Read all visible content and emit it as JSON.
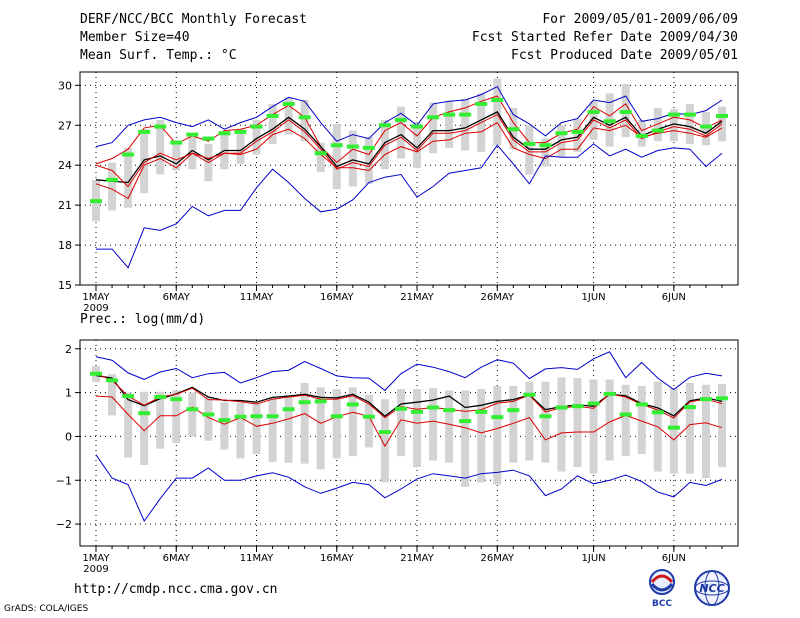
{
  "header": {
    "left_lines": [
      "DERF/NCC/BCC Monthly Forecast",
      "Member Size=40",
      "Mean Surf. Temp.: °C"
    ],
    "right_lines": [
      "For 2009/05/01-2009/06/09",
      "Fcst Started Refer Date 2009/04/30",
      "Fcst Produced Date 2009/05/01"
    ]
  },
  "footer": {
    "url": "http://cmdp.ncc.cma.gov.cn",
    "credit": "GrADS: COLA/IGES"
  },
  "logos": {
    "bcc": "BCC",
    "ncc": "NCC"
  },
  "colors": {
    "box": "#d3d3d3",
    "median": "#33ee33",
    "minmax": "#0000cc",
    "pct": "#dd0000",
    "mean": "#000000"
  },
  "chart_data": [
    {
      "type": "line",
      "title": "Mean Surf. Temp.: °C",
      "ylim": [
        15,
        31
      ],
      "yticks": [
        15,
        18,
        21,
        24,
        27,
        30
      ],
      "ytick_labels": [
        "15",
        "18",
        "21",
        "24",
        "27",
        "30"
      ],
      "xticks": [
        1,
        6,
        11,
        16,
        21,
        26,
        32,
        37
      ],
      "xtick_labels": [
        "1MAY",
        "6MAY",
        "11MAY",
        "16MAY",
        "21MAY",
        "26MAY",
        "1JUN",
        "6JUN"
      ],
      "year_label": "2009",
      "days": [
        1,
        40
      ],
      "series": [
        {
          "name": "max",
          "values": [
            25.4,
            25.7,
            27.0,
            27.4,
            27.6,
            27.2,
            26.9,
            27.4,
            26.7,
            27.2,
            27.6,
            28.4,
            29.1,
            28.8,
            27.2,
            25.8,
            26.3,
            26.0,
            27.2,
            27.9,
            27.0,
            28.6,
            28.8,
            28.9,
            29.3,
            29.9,
            27.8,
            27.1,
            26.2,
            27.2,
            27.5,
            28.9,
            28.7,
            29.2,
            27.3,
            27.5,
            27.9,
            27.8,
            28.1,
            28.9
          ]
        },
        {
          "name": "p90",
          "values": [
            24.1,
            24.5,
            25.2,
            26.8,
            27.0,
            25.6,
            26.2,
            25.8,
            26.6,
            26.7,
            27.0,
            27.8,
            28.5,
            27.6,
            25.4,
            24.2,
            25.2,
            24.8,
            26.6,
            27.2,
            26.2,
            27.6,
            28.0,
            28.3,
            28.8,
            29.2,
            27.2,
            25.7,
            25.7,
            26.4,
            26.7,
            28.4,
            27.7,
            28.6,
            26.6,
            27.1,
            27.6,
            27.4,
            26.8,
            27.4
          ]
        },
        {
          "name": "mean",
          "values": [
            22.9,
            22.8,
            22.7,
            24.4,
            24.7,
            24.1,
            25.1,
            24.4,
            25.1,
            25.1,
            26.0,
            26.7,
            27.6,
            26.7,
            25.4,
            23.9,
            24.4,
            24.1,
            25.7,
            26.3,
            25.3,
            26.6,
            26.6,
            26.8,
            27.4,
            28.0,
            26.1,
            25.2,
            25.2,
            25.9,
            26.1,
            27.6,
            27.0,
            27.6,
            26.2,
            26.7,
            27.1,
            26.9,
            26.4,
            27.3
          ]
        },
        {
          "name": "p50",
          "values": [
            22.6,
            22.2,
            21.5,
            24.0,
            24.5,
            23.8,
            24.9,
            24.2,
            24.9,
            24.9,
            25.8,
            26.5,
            27.4,
            26.5,
            25.2,
            23.7,
            24.2,
            23.9,
            25.5,
            26.1,
            25.1,
            26.4,
            26.4,
            26.6,
            27.2,
            27.8,
            25.9,
            25.0,
            25.0,
            25.7,
            25.9,
            27.4,
            26.8,
            27.4,
            26.0,
            26.5,
            26.9,
            26.7,
            26.2,
            27.1
          ]
        },
        {
          "name": "p10",
          "values": [
            24.0,
            23.6,
            22.4,
            24.2,
            24.9,
            24.4,
            24.9,
            24.5,
            24.9,
            24.8,
            25.2,
            26.3,
            26.7,
            26.0,
            24.8,
            23.8,
            23.8,
            23.6,
            24.8,
            25.4,
            25.0,
            25.8,
            25.9,
            26.4,
            26.5,
            27.2,
            25.3,
            24.8,
            24.5,
            25.2,
            25.2,
            26.8,
            26.6,
            27.0,
            26.1,
            26.4,
            26.6,
            26.4,
            26.1,
            26.8
          ]
        },
        {
          "name": "min",
          "values": [
            17.7,
            17.7,
            16.3,
            19.3,
            19.1,
            19.6,
            20.9,
            20.2,
            20.6,
            20.6,
            22.3,
            23.7,
            22.7,
            21.5,
            20.5,
            20.7,
            21.4,
            22.7,
            23.1,
            23.3,
            21.6,
            22.4,
            23.4,
            23.6,
            23.8,
            25.5,
            24.1,
            22.6,
            24.7,
            24.6,
            24.6,
            25.6,
            24.7,
            25.2,
            24.6,
            25.1,
            25.3,
            25.2,
            23.9,
            24.9
          ]
        }
      ],
      "box_low": [
        19.8,
        20.6,
        20.8,
        21.9,
        23.3,
        23.6,
        23.7,
        22.8,
        23.7,
        24.1,
        24.8,
        25.6,
        26.3,
        25.8,
        23.5,
        22.2,
        22.4,
        22.6,
        23.7,
        24.5,
        23.8,
        24.9,
        25.3,
        25.1,
        25.0,
        25.5,
        25.2,
        23.3,
        23.9,
        24.6,
        25.0,
        25.9,
        25.4,
        26.1,
        25.4,
        25.8,
        25.8,
        25.6,
        25.5,
        25.8
      ],
      "box_high": [
        22.9,
        24.2,
        25.3,
        26.7,
        27.4,
        25.8,
        26.2,
        25.6,
        26.5,
        26.7,
        27.4,
        28.6,
        29.1,
        28.9,
        25.7,
        27.1,
        26.6,
        26.1,
        27.4,
        28.4,
        27.2,
        28.7,
        28.8,
        29.0,
        29.4,
        30.5,
        28.3,
        27.0,
        26.0,
        27.0,
        27.5,
        28.8,
        29.4,
        30.1,
        27.4,
        28.3,
        28.2,
        28.6,
        28.0,
        28.4
      ],
      "medians": [
        21.3,
        22.9,
        24.8,
        26.5,
        26.9,
        25.7,
        26.3,
        26.0,
        26.4,
        26.5,
        26.9,
        27.7,
        28.6,
        27.6,
        24.9,
        25.5,
        25.4,
        25.3,
        27.0,
        27.4,
        26.9,
        27.6,
        27.8,
        27.8,
        28.6,
        28.9,
        26.7,
        25.6,
        25.5,
        26.4,
        26.5,
        28.0,
        27.3,
        28.0,
        26.2,
        26.6,
        27.8,
        27.8,
        26.9,
        27.7
      ]
    },
    {
      "type": "line",
      "title": "Prec.: log(mm/d)",
      "ylim": [
        -2.5,
        2.2
      ],
      "yticks": [
        -2,
        -1,
        0,
        1,
        2
      ],
      "ytick_labels": [
        "−2",
        "−1",
        "0",
        "1",
        "2"
      ],
      "xticks": [
        1,
        6,
        11,
        16,
        21,
        26,
        32,
        37
      ],
      "xtick_labels": [
        "1MAY",
        "6MAY",
        "11MAY",
        "16MAY",
        "21MAY",
        "26MAY",
        "1JUN",
        "6JUN"
      ],
      "year_label": "2009",
      "days": [
        1,
        40
      ],
      "series": [
        {
          "name": "max",
          "values": [
            1.82,
            1.74,
            1.45,
            1.3,
            1.47,
            1.55,
            1.34,
            1.43,
            1.46,
            1.22,
            1.34,
            1.48,
            1.51,
            1.71,
            1.55,
            1.38,
            1.34,
            1.33,
            1.05,
            1.43,
            1.65,
            1.58,
            1.48,
            1.34,
            1.58,
            1.75,
            1.67,
            1.32,
            1.54,
            1.57,
            1.53,
            1.77,
            1.93,
            1.34,
            1.69,
            1.33,
            1.07,
            1.35,
            1.44,
            1.38
          ]
        },
        {
          "name": "mean",
          "values": [
            1.39,
            1.33,
            0.84,
            0.7,
            0.86,
            0.97,
            1.12,
            0.9,
            0.82,
            0.82,
            0.78,
            0.89,
            0.92,
            0.96,
            0.89,
            0.88,
            0.96,
            0.78,
            0.46,
            0.74,
            0.78,
            0.83,
            0.92,
            0.66,
            0.71,
            0.8,
            0.84,
            0.95,
            0.61,
            0.68,
            0.72,
            0.69,
            0.96,
            0.93,
            0.75,
            0.65,
            0.47,
            0.81,
            0.88,
            0.8
          ]
        },
        {
          "name": "p50",
          "values": [
            1.43,
            1.28,
            0.92,
            0.71,
            0.9,
            0.96,
            1.1,
            0.84,
            0.83,
            0.79,
            0.74,
            0.85,
            0.9,
            0.94,
            0.85,
            0.85,
            0.93,
            0.74,
            0.43,
            0.68,
            0.62,
            0.66,
            0.62,
            0.57,
            0.61,
            0.76,
            0.8,
            0.94,
            0.56,
            0.65,
            0.69,
            0.64,
            0.97,
            0.9,
            0.73,
            0.6,
            0.42,
            0.79,
            0.85,
            0.75
          ]
        },
        {
          "name": "p10",
          "values": [
            0.92,
            0.9,
            0.5,
            0.13,
            0.47,
            0.47,
            0.67,
            0.43,
            0.28,
            0.43,
            0.23,
            0.3,
            0.4,
            0.52,
            0.3,
            0.45,
            0.55,
            0.46,
            -0.22,
            0.38,
            0.3,
            0.35,
            0.28,
            0.2,
            0.08,
            0.18,
            0.3,
            0.43,
            -0.08,
            0.08,
            0.1,
            0.1,
            0.33,
            0.48,
            0.35,
            0.22,
            -0.08,
            0.27,
            0.31,
            0.2
          ]
        },
        {
          "name": "min",
          "values": [
            -0.42,
            -0.95,
            -1.1,
            -1.93,
            -1.42,
            -0.95,
            -0.95,
            -0.72,
            -1.0,
            -1.0,
            -0.9,
            -0.83,
            -0.93,
            -1.15,
            -1.3,
            -1.18,
            -1.05,
            -1.1,
            -1.4,
            -1.2,
            -0.97,
            -0.85,
            -0.9,
            -0.95,
            -0.85,
            -0.82,
            -0.77,
            -0.9,
            -1.35,
            -1.2,
            -0.9,
            -1.08,
            -1.0,
            -0.88,
            -1.03,
            -1.27,
            -1.38,
            -1.05,
            -1.12,
            -0.98
          ]
        }
      ],
      "box_low": [
        1.24,
        0.48,
        -0.48,
        -0.65,
        -0.28,
        -0.15,
        0.0,
        -0.1,
        -0.3,
        -0.5,
        -0.4,
        -0.58,
        -0.6,
        -0.62,
        -0.75,
        -0.5,
        -0.45,
        -0.25,
        -1.05,
        -0.45,
        -0.7,
        -0.55,
        -0.6,
        -1.15,
        -1.05,
        -1.1,
        -0.6,
        -0.55,
        -0.6,
        -0.8,
        -0.7,
        -0.85,
        -0.55,
        -0.45,
        -0.4,
        -0.8,
        -0.85,
        -0.85,
        -0.95,
        -0.7
      ],
      "box_high": [
        1.6,
        1.42,
        1.0,
        1.02,
        1.02,
        1.05,
        1.0,
        0.9,
        0.78,
        0.77,
        0.75,
        0.88,
        0.95,
        1.22,
        1.12,
        1.08,
        1.12,
        0.95,
        0.85,
        1.08,
        1.08,
        1.1,
        1.05,
        1.05,
        1.08,
        1.15,
        1.15,
        1.25,
        1.25,
        1.35,
        1.33,
        1.3,
        1.3,
        1.18,
        1.15,
        1.25,
        1.1,
        1.22,
        1.18,
        1.2
      ],
      "medians": [
        1.43,
        1.28,
        0.92,
        0.53,
        0.9,
        0.85,
        0.62,
        0.5,
        0.37,
        0.45,
        0.46,
        0.46,
        0.62,
        0.78,
        0.8,
        0.46,
        0.73,
        0.45,
        0.1,
        0.63,
        0.56,
        0.66,
        0.6,
        0.35,
        0.56,
        0.44,
        0.6,
        0.95,
        0.46,
        0.66,
        0.69,
        0.75,
        0.97,
        0.5,
        0.73,
        0.55,
        0.2,
        0.67,
        0.85,
        0.87
      ]
    }
  ]
}
